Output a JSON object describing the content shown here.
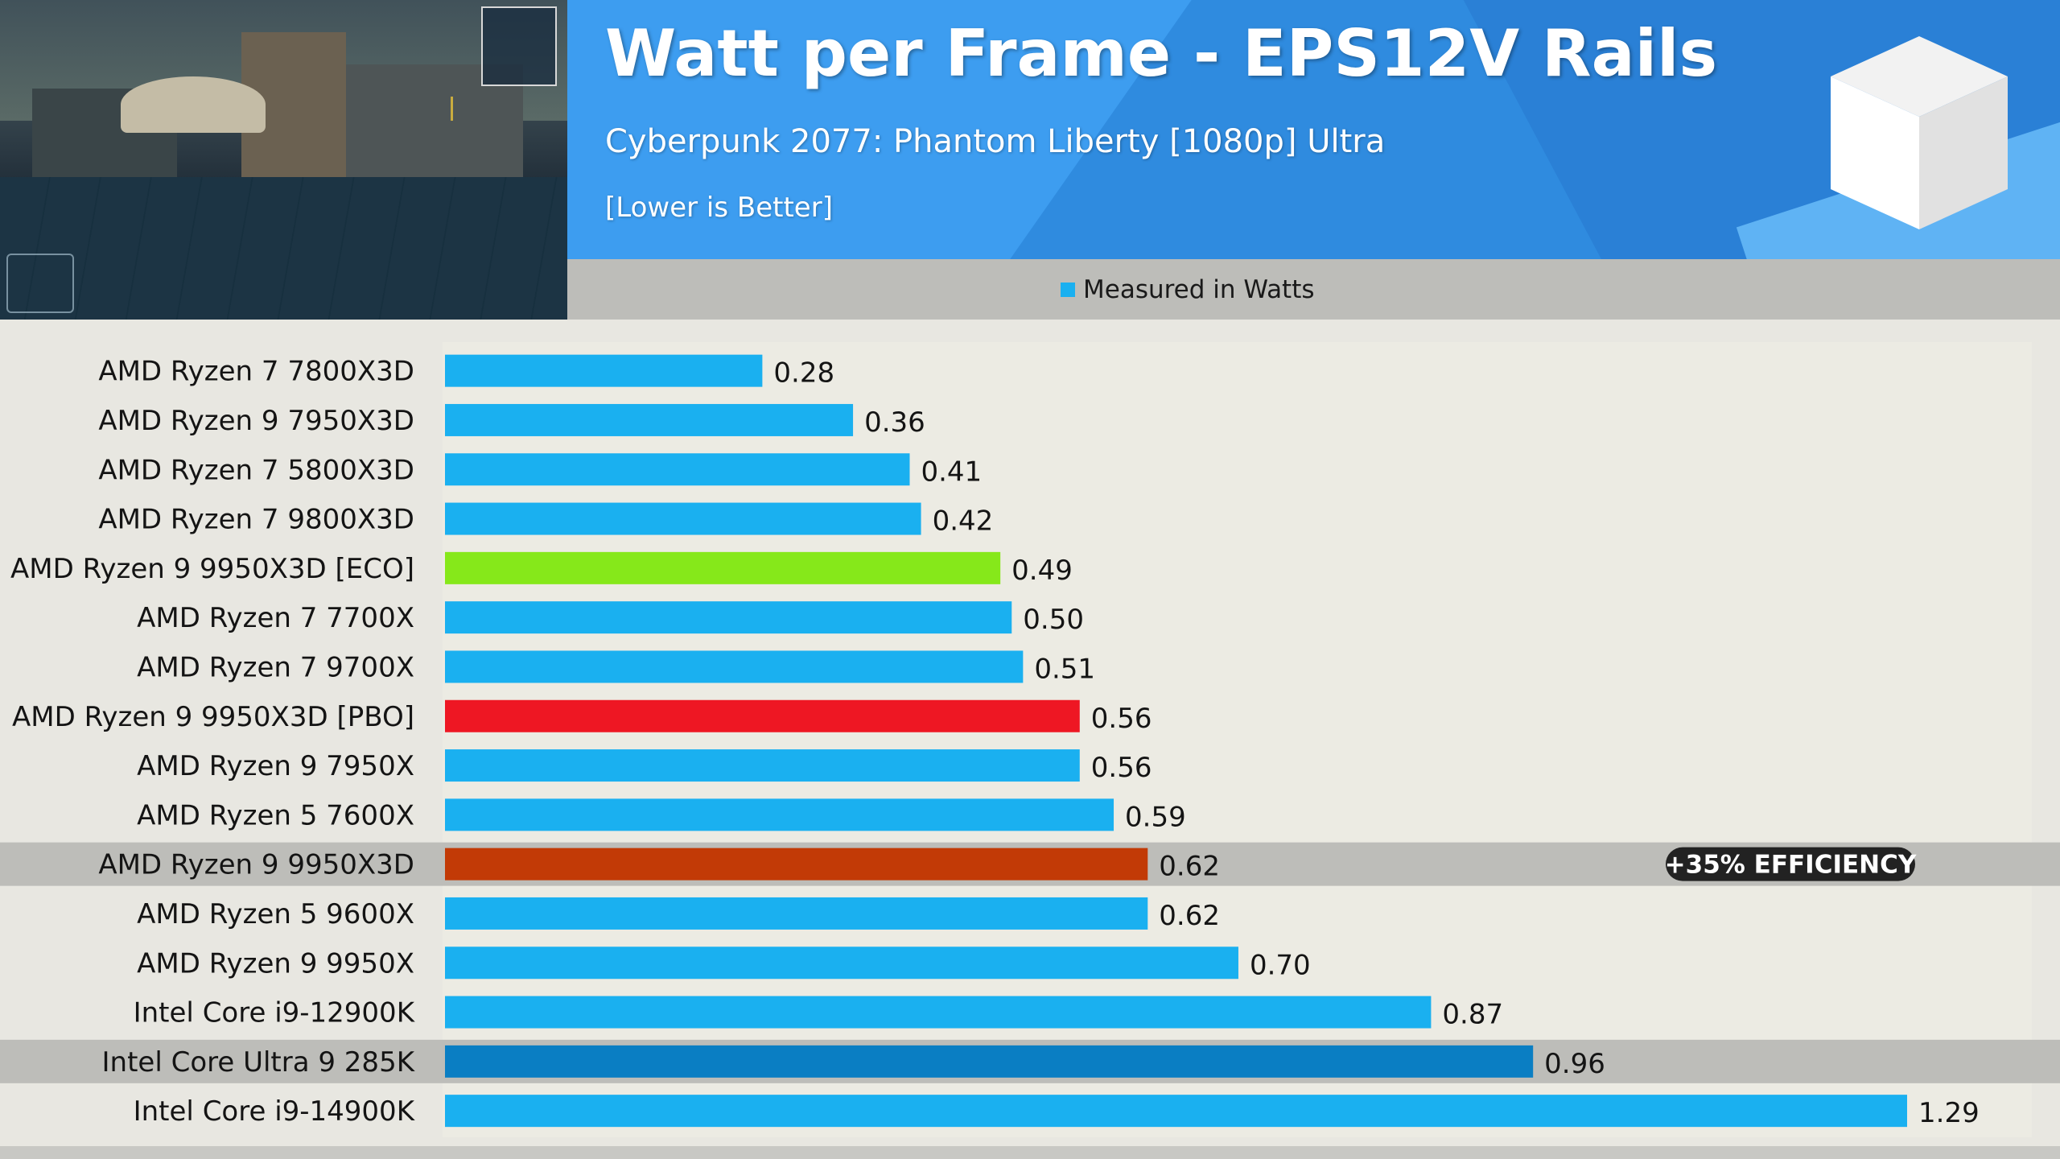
{
  "chart_data": {
    "type": "bar",
    "orientation": "horizontal",
    "title": "Watt per Frame - EPS12V Rails",
    "subtitle": "Cyberpunk 2077: Phantom Liberty [1080p] Ultra",
    "note": "[Lower is Better]",
    "legend": [
      "Measured in Watts"
    ],
    "legend_placement": "top",
    "xlim": [
      0,
      1.29
    ],
    "grid": false,
    "categories": [
      "AMD Ryzen 7 7800X3D",
      "AMD Ryzen 9 7950X3D",
      "AMD Ryzen 7 5800X3D",
      "AMD Ryzen 7 9800X3D",
      "AMD Ryzen 9 9950X3D [ECO]",
      "AMD Ryzen 7 7700X",
      "AMD Ryzen 7 9700X",
      "AMD Ryzen 9 9950X3D [PBO]",
      "AMD Ryzen 9 7950X",
      "AMD Ryzen 5 7600X",
      "AMD Ryzen 9 9950X3D",
      "AMD Ryzen 5 9600X",
      "AMD Ryzen 9 9950X",
      "Intel Core i9-12900K",
      "Intel Core Ultra 9 285K",
      "Intel Core i9-14900K"
    ],
    "series": [
      {
        "name": "Measured in Watts",
        "values": [
          0.28,
          0.36,
          0.41,
          0.42,
          0.49,
          0.5,
          0.51,
          0.56,
          0.56,
          0.59,
          0.62,
          0.62,
          0.7,
          0.87,
          0.96,
          1.29
        ],
        "labels": [
          "0.28",
          "0.36",
          "0.41",
          "0.42",
          "0.49",
          "0.50",
          "0.51",
          "0.56",
          "0.56",
          "0.59",
          "0.62",
          "0.62",
          "0.70",
          "0.87",
          "0.96",
          "1.29"
        ]
      }
    ],
    "bar_colors": [
      "#1ab0f0",
      "#1ab0f0",
      "#1ab0f0",
      "#1ab0f0",
      "#86e81a",
      "#1ab0f0",
      "#1ab0f0",
      "#ee1723",
      "#1ab0f0",
      "#1ab0f0",
      "#c23a06",
      "#1ab0f0",
      "#1ab0f0",
      "#1ab0f0",
      "#0a7ec3",
      "#1ab0f0"
    ],
    "highlighted_rows": [
      "AMD Ryzen 9 9950X3D",
      "Intel Core Ultra 9 285K"
    ],
    "annotations": [
      {
        "category": "AMD Ryzen 9 9950X3D",
        "text": "+35% EFFICIENCY"
      }
    ]
  },
  "colors": {
    "default_bar": "#1ab0f0",
    "header_blue": "#3d9df0",
    "highlight_row": "#bdbdb9"
  }
}
